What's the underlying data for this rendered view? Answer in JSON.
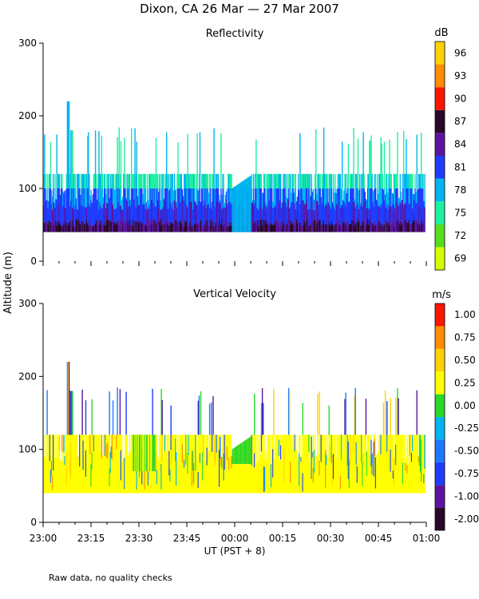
{
  "figure": {
    "title": "Dixon, CA 26 Mar — 27 Mar 2007",
    "ylabel": "Altitude (m)",
    "xlabel": "UT  (PST + 8)",
    "footnote": "Raw data, no quality checks"
  },
  "chart_data": [
    {
      "type": "heatmap",
      "title": "Reflectivity",
      "xlabel": "UT  (PST + 8)",
      "ylabel": "Altitude (m)",
      "xlim": [
        0,
        120
      ],
      "ylim": [
        0,
        300
      ],
      "x_tick_values": [
        0,
        15,
        30,
        45,
        60,
        75,
        90,
        105,
        120
      ],
      "x_tick_labels": [
        "23:00",
        "23:15",
        "23:30",
        "23:45",
        "00:00",
        "00:15",
        "00:30",
        "00:45",
        "01:00"
      ],
      "y_ticks": [
        0,
        100,
        200,
        300
      ],
      "colorbar": {
        "unit": "dB",
        "tick_labels": [
          "69",
          "72",
          "75",
          "78",
          "81",
          "84",
          "87",
          "90",
          "93",
          "96"
        ],
        "colors": [
          "#d4ff00",
          "#55dd1e",
          "#1ef0a0",
          "#00b4f0",
          "#1e3cff",
          "#5a14a0",
          "#280a28",
          "#ff1400",
          "#ff8c00",
          "#ffd200"
        ]
      },
      "echo_base_m": 40,
      "typical_echo_top_m": 120,
      "max_echo_top_m": 220,
      "gap_interval": [
        59,
        65
      ]
    },
    {
      "type": "heatmap",
      "title": "Vertical Velocity",
      "xlabel": "UT  (PST + 8)",
      "ylabel": "Altitude (m)",
      "xlim": [
        0,
        120
      ],
      "ylim": [
        0,
        300
      ],
      "x_tick_values": [
        0,
        15,
        30,
        45,
        60,
        75,
        90,
        105,
        120
      ],
      "x_tick_labels": [
        "23:00",
        "23:15",
        "23:30",
        "23:45",
        "00:00",
        "00:15",
        "00:30",
        "00:45",
        "01:00"
      ],
      "y_ticks": [
        0,
        100,
        200,
        300
      ],
      "colorbar": {
        "unit": "m/s",
        "tick_labels": [
          "-2.00",
          "-1.00",
          "-0.75",
          "-0.50",
          "-0.25",
          "0.00",
          "0.25",
          "0.50",
          "0.75",
          "1.00"
        ],
        "colors": [
          "#280a28",
          "#5a14a0",
          "#1e3cff",
          "#1e78ff",
          "#00b4f0",
          "#2ad82a",
          "#ffff00",
          "#ffd200",
          "#ff8c00",
          "#ff1400"
        ]
      },
      "echo_base_m": 40,
      "typical_echo_top_m": 120,
      "max_echo_top_m": 220,
      "gap_interval": [
        59,
        65
      ]
    }
  ]
}
